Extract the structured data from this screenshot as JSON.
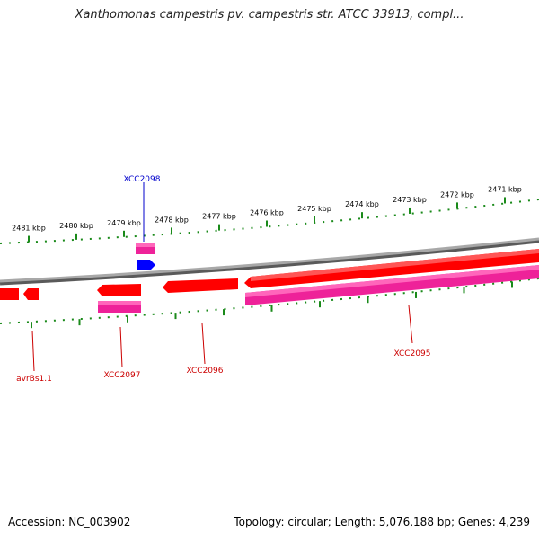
{
  "header": {
    "title": "Xanthomonas campestris pv. campestris str. ATCC 33913, compl..."
  },
  "footer": {
    "accession": "Accession: NC_003902",
    "topology": "Topology: circular; Length: 5,076,188 bp; Genes: 4,239"
  },
  "colors": {
    "backbone": "#8a8a8a",
    "ticks": "#1a8a1a",
    "gene_red": "#ff0000",
    "gene_pink": "#ee2299",
    "gene_blue": "#0000ff"
  },
  "scale": {
    "labels": [
      "2481 kbp",
      "2480 kbp",
      "2479 kbp",
      "2478 kbp",
      "2477 kbp",
      "2476 kbp",
      "2475 kbp",
      "2474 kbp",
      "2473 kbp",
      "2472 kbp",
      "2471 kbp"
    ]
  },
  "genes": [
    {
      "label": "XCC2098",
      "color": "blue"
    },
    {
      "label": "avrBs1.1",
      "color": "red"
    },
    {
      "label": "XCC2097",
      "color": "red"
    },
    {
      "label": "XCC2096",
      "color": "red"
    },
    {
      "label": "XCC2095",
      "color": "red"
    }
  ]
}
